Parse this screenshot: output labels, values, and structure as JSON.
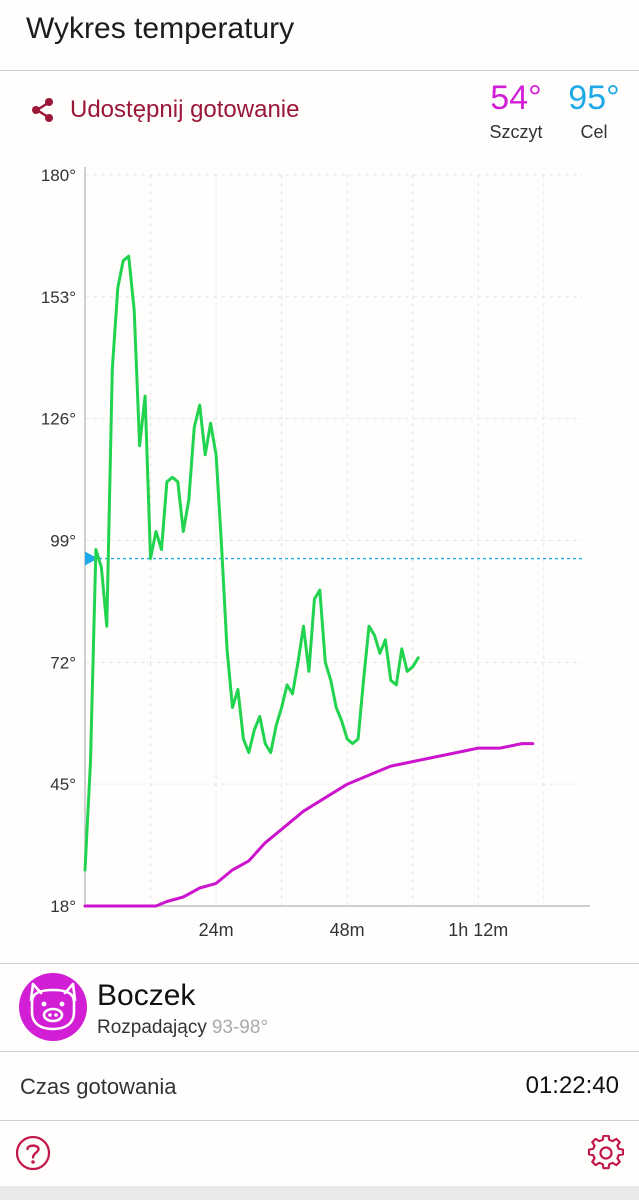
{
  "header": {
    "title": "Wykres temperatury"
  },
  "share": {
    "label": "Udostępnij gotowanie",
    "icon": "share-icon"
  },
  "stats": {
    "peak": {
      "value": "54°",
      "label": "Szczyt",
      "color": "#d21fd6"
    },
    "target": {
      "value": "95°",
      "label": "Cel",
      "color": "#1fa9e8"
    }
  },
  "chart_data": {
    "type": "line",
    "ylim": [
      18,
      180
    ],
    "y_ticks": [
      "180°",
      "153°",
      "126°",
      "99°",
      "72°",
      "45°",
      "18°"
    ],
    "x_ticks": [
      "24m",
      "48m",
      "1h 12m"
    ],
    "x_unit": "minutes",
    "target_line": 95,
    "series": [
      {
        "color": "#22d34f",
        "x": [
          0,
          1,
          2,
          3,
          4,
          5,
          6,
          7,
          8,
          9,
          10,
          11,
          12,
          13,
          14,
          15,
          16,
          17,
          18,
          19,
          20,
          21,
          22,
          23,
          24,
          25,
          26,
          27,
          28,
          29,
          30,
          31,
          32,
          33,
          34,
          35,
          36,
          37,
          38,
          39,
          40,
          41,
          42,
          43,
          44,
          45,
          46,
          47,
          48,
          49,
          50,
          51,
          52,
          53,
          54,
          55,
          56,
          57,
          58,
          59,
          60,
          61,
          62,
          63,
          64,
          65,
          66,
          67,
          68,
          69,
          70,
          71,
          72,
          73,
          74,
          75,
          76,
          77,
          78,
          79,
          80,
          81,
          82
        ],
        "y": [
          26,
          50,
          97,
          93,
          80,
          137,
          155,
          161,
          162,
          150,
          120,
          131,
          95,
          101,
          97,
          112,
          113,
          112,
          101,
          108,
          124,
          129,
          118,
          125,
          118,
          98,
          75,
          62,
          66,
          55,
          52,
          57,
          60,
          54,
          52,
          58,
          62,
          67,
          65,
          72,
          80,
          70,
          86,
          88,
          72,
          68,
          62,
          59,
          55,
          54,
          55,
          68,
          80,
          78,
          74,
          77,
          68,
          67,
          75,
          70,
          71,
          73,
          null,
          null,
          null,
          null,
          null,
          null,
          null,
          null,
          null,
          null,
          null,
          null,
          null,
          null,
          null,
          null,
          null,
          null,
          null,
          null,
          null
        ]
      },
      {
        "color": "#cc14cf",
        "x": [
          0,
          6,
          10,
          13,
          15,
          18,
          21,
          24,
          27,
          30,
          33,
          36,
          40,
          44,
          48,
          52,
          56,
          60,
          64,
          68,
          72,
          76,
          80,
          82
        ],
        "y": [
          18,
          18,
          18,
          18,
          19,
          20,
          22,
          23,
          26,
          28,
          32,
          35,
          39,
          42,
          45,
          47,
          49,
          50,
          51,
          52,
          53,
          53,
          54,
          54
        ]
      }
    ]
  },
  "meat": {
    "name": "Boczek",
    "doneness": "Rozpadający",
    "range": "93-98°",
    "icon": "pig-icon",
    "color": "#d21fd6"
  },
  "cooking": {
    "label": "Czas gotowania",
    "value": "01:22:40"
  },
  "footer": {
    "help_icon": "help-icon",
    "settings_icon": "gear-icon"
  }
}
